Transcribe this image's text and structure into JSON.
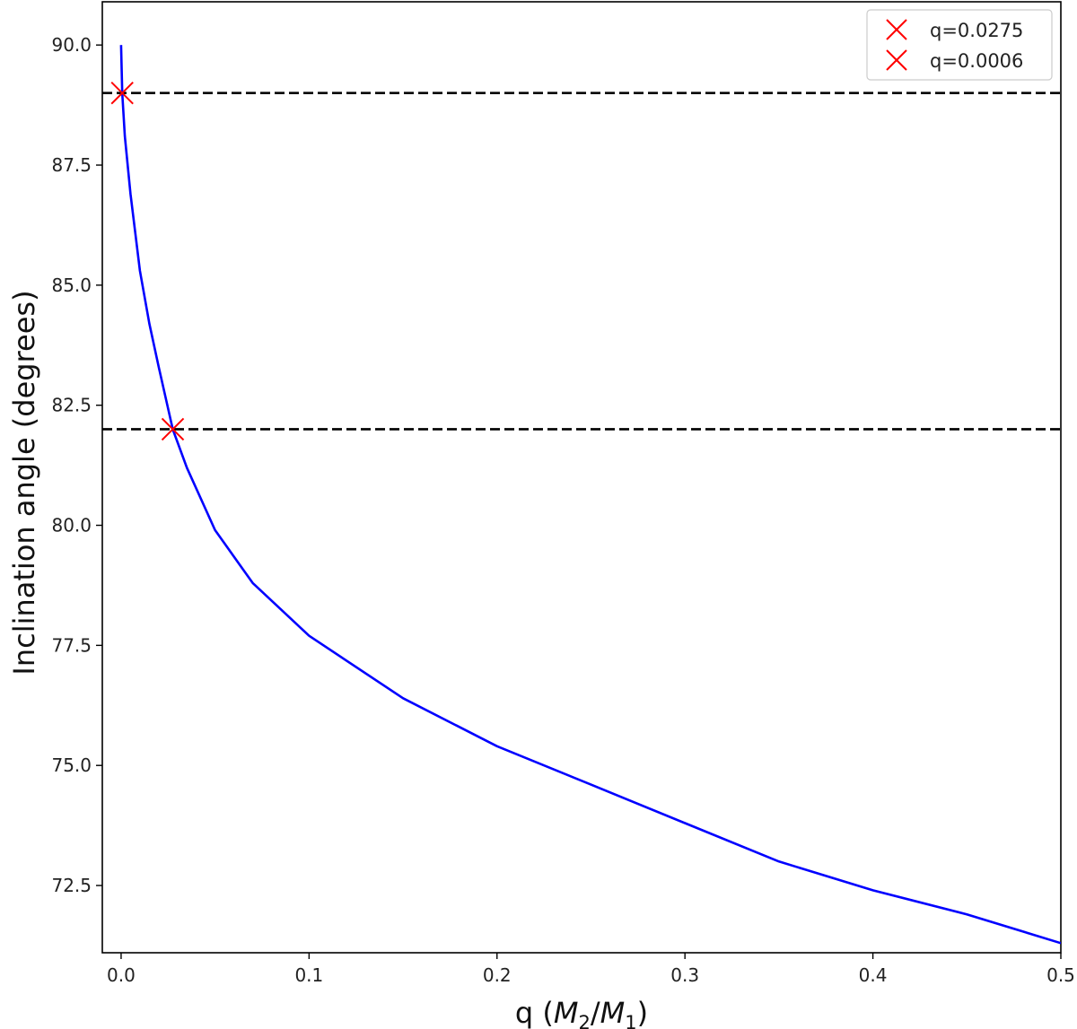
{
  "chart_data": {
    "type": "line",
    "xlabel": "q (M2/M1)",
    "ylabel": "Inclination angle (degrees)",
    "xlim": [
      -0.01,
      0.5
    ],
    "ylim": [
      71.1,
      90.9
    ],
    "x_ticks": [
      0.0,
      0.1,
      0.2,
      0.3,
      0.4,
      0.5
    ],
    "x_tick_labels": [
      "0.0",
      "0.1",
      "0.2",
      "0.3",
      "0.4",
      "0.5"
    ],
    "y_ticks": [
      72.5,
      75.0,
      77.5,
      80.0,
      82.5,
      85.0,
      87.5,
      90.0
    ],
    "y_tick_labels": [
      "72.5",
      "75.0",
      "77.5",
      "80.0",
      "82.5",
      "85.0",
      "87.5",
      "90.0"
    ],
    "grid": false,
    "legend_position": "top-right",
    "series": [
      {
        "style": "line",
        "color": "#0000ff",
        "x": [
          0.0,
          0.0006,
          0.002,
          0.005,
          0.01,
          0.015,
          0.02,
          0.0275,
          0.035,
          0.05,
          0.07,
          0.1,
          0.15,
          0.2,
          0.25,
          0.3,
          0.35,
          0.4,
          0.45,
          0.5
        ],
        "y": [
          90.0,
          89.0,
          88.1,
          86.9,
          85.3,
          84.2,
          83.3,
          82.0,
          81.2,
          79.9,
          78.8,
          77.7,
          76.4,
          75.4,
          74.6,
          73.8,
          73.0,
          72.4,
          71.9,
          71.3
        ]
      },
      {
        "name": "q=0.0275",
        "style": "marker",
        "marker": "x",
        "color": "#ff0000",
        "x": [
          0.0275
        ],
        "y": [
          82.0
        ]
      },
      {
        "name": "q=0.0006",
        "style": "marker",
        "marker": "x",
        "color": "#ff0000",
        "x": [
          0.0006
        ],
        "y": [
          89.0
        ]
      }
    ],
    "hlines": [
      {
        "y": 89.0,
        "style": "dashed",
        "color": "#000000"
      },
      {
        "y": 82.0,
        "style": "dashed",
        "color": "#000000"
      }
    ],
    "legend": [
      {
        "label": "q=0.0275",
        "color": "#ff0000",
        "marker": "x"
      },
      {
        "label": "q=0.0006",
        "color": "#ff0000",
        "marker": "x"
      }
    ]
  }
}
